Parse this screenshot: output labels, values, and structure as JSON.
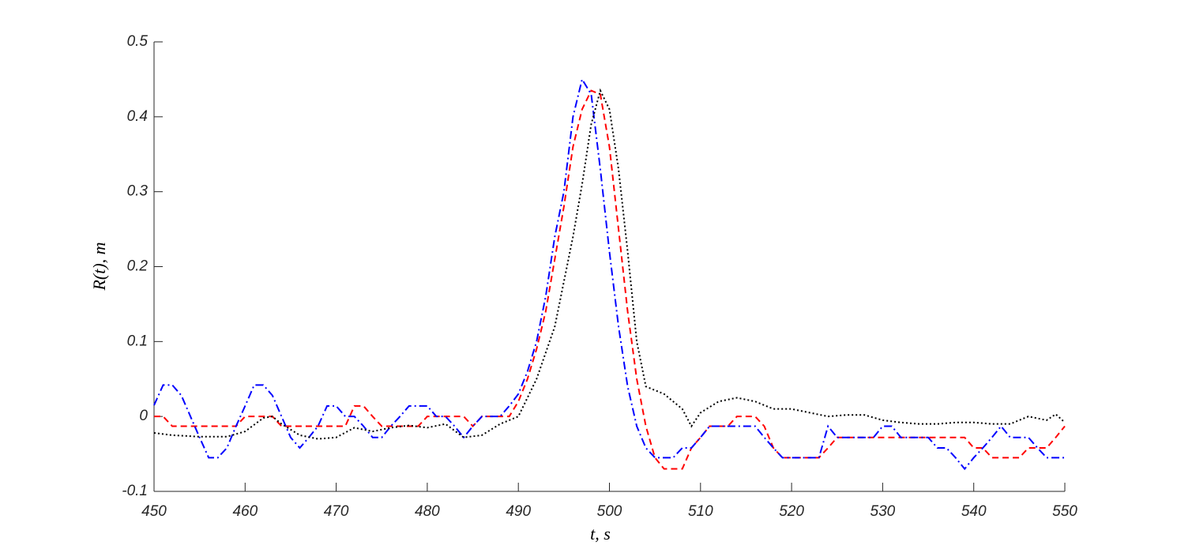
{
  "chart_data": {
    "type": "line",
    "x_label": "t, s",
    "y_label": "R(t), m",
    "xlim": [
      450,
      550
    ],
    "xticks": [
      450,
      460,
      470,
      480,
      490,
      500,
      510,
      520,
      530,
      540,
      550
    ],
    "ylim": [
      -0.1,
      0.5
    ],
    "yticks": [
      -0.1,
      0,
      0.1,
      0.2,
      0.3,
      0.4,
      0.5
    ],
    "grid": false,
    "x": [
      450,
      451,
      452,
      453,
      454,
      455,
      456,
      457,
      458,
      459,
      460,
      461,
      462,
      463,
      464,
      465,
      466,
      467,
      468,
      469,
      470,
      471,
      472,
      473,
      474,
      475,
      476,
      477,
      478,
      479,
      480,
      481,
      482,
      483,
      484,
      485,
      486,
      487,
      488,
      489,
      490,
      491,
      492,
      493,
      494,
      495,
      496,
      497,
      498,
      499,
      500,
      501,
      502,
      503,
      504,
      505,
      506,
      507,
      508,
      509,
      510,
      511,
      512,
      513,
      514,
      515,
      516,
      517,
      518,
      519,
      520,
      521,
      522,
      523,
      524,
      525,
      526,
      527,
      528,
      529,
      530,
      531,
      532,
      533,
      534,
      535,
      536,
      537,
      538,
      539,
      540,
      541,
      542,
      543,
      544,
      545,
      546,
      547,
      548,
      549,
      550
    ],
    "series": [
      {
        "color": "#ff0000",
        "dash": "8,5",
        "values": [
          0,
          0,
          -0.013,
          -0.013,
          -0.013,
          -0.013,
          -0.013,
          -0.013,
          -0.013,
          -0.013,
          0,
          0,
          0,
          0,
          -0.013,
          -0.013,
          -0.013,
          -0.013,
          -0.013,
          -0.013,
          -0.013,
          -0.013,
          0.014,
          0.014,
          0,
          -0.013,
          -0.013,
          -0.013,
          -0.013,
          -0.013,
          0,
          0,
          0,
          0,
          0,
          -0.013,
          0,
          0,
          0,
          0,
          0.02,
          0.05,
          0.09,
          0.14,
          0.21,
          0.28,
          0.36,
          0.41,
          0.435,
          0.43,
          0.36,
          0.25,
          0.14,
          0.05,
          -0.013,
          -0.055,
          -0.07,
          -0.07,
          -0.07,
          -0.042,
          -0.028,
          -0.013,
          -0.013,
          -0.013,
          0,
          0,
          0,
          -0.013,
          -0.042,
          -0.055,
          -0.055,
          -0.055,
          -0.055,
          -0.055,
          -0.042,
          -0.028,
          -0.028,
          -0.028,
          -0.028,
          -0.028,
          -0.028,
          -0.028,
          -0.028,
          -0.028,
          -0.028,
          -0.028,
          -0.028,
          -0.028,
          -0.028,
          -0.028,
          -0.042,
          -0.042,
          -0.055,
          -0.055,
          -0.055,
          -0.055,
          -0.042,
          -0.042,
          -0.042,
          -0.028,
          -0.013
        ]
      },
      {
        "color": "#0000ff",
        "dash": "10,4,2,4",
        "values": [
          0.015,
          0.042,
          0.042,
          0.028,
          0,
          -0.028,
          -0.055,
          -0.055,
          -0.042,
          -0.013,
          0.014,
          0.042,
          0.042,
          0.028,
          0,
          -0.028,
          -0.042,
          -0.028,
          -0.013,
          0.014,
          0.014,
          0,
          0,
          -0.013,
          -0.028,
          -0.028,
          -0.013,
          0,
          0.014,
          0.014,
          0.014,
          0,
          0,
          -0.013,
          -0.028,
          -0.013,
          0,
          0,
          0,
          0.014,
          0.03,
          0.06,
          0.1,
          0.16,
          0.24,
          0.3,
          0.4,
          0.45,
          0.43,
          0.33,
          0.22,
          0.12,
          0.04,
          -0.013,
          -0.042,
          -0.055,
          -0.055,
          -0.055,
          -0.042,
          -0.042,
          -0.028,
          -0.013,
          -0.013,
          -0.013,
          -0.013,
          -0.013,
          -0.013,
          -0.028,
          -0.042,
          -0.055,
          -0.055,
          -0.055,
          -0.055,
          -0.055,
          -0.013,
          -0.028,
          -0.028,
          -0.028,
          -0.028,
          -0.028,
          -0.013,
          -0.013,
          -0.028,
          -0.028,
          -0.028,
          -0.028,
          -0.042,
          -0.042,
          -0.055,
          -0.07,
          -0.055,
          -0.042,
          -0.028,
          -0.013,
          -0.028,
          -0.028,
          -0.028,
          -0.042,
          -0.055,
          -0.055,
          -0.055
        ]
      },
      {
        "color": "#000000",
        "dash": "2,3",
        "x": [
          450,
          452,
          455,
          458,
          460,
          462,
          463,
          464,
          466,
          468,
          470,
          472,
          474,
          476,
          478,
          480,
          482,
          484,
          486,
          488,
          490,
          492,
          494,
          496,
          497,
          498,
          499,
          500,
          501,
          502,
          503,
          504,
          506,
          508,
          509,
          510,
          512,
          514,
          516,
          518,
          520,
          522,
          524,
          526,
          528,
          530,
          532,
          534,
          536,
          538,
          540,
          542,
          544,
          546,
          548,
          549,
          550
        ],
        "values": [
          -0.022,
          -0.025,
          -0.027,
          -0.027,
          -0.02,
          -0.002,
          0,
          -0.01,
          -0.025,
          -0.03,
          -0.028,
          -0.015,
          -0.02,
          -0.015,
          -0.012,
          -0.015,
          -0.01,
          -0.028,
          -0.025,
          -0.01,
          0,
          0.05,
          0.12,
          0.24,
          0.31,
          0.39,
          0.435,
          0.41,
          0.33,
          0.22,
          0.1,
          0.04,
          0.03,
          0.01,
          -0.013,
          0.005,
          0.02,
          0.025,
          0.02,
          0.01,
          0.01,
          0.005,
          0,
          0.002,
          0.002,
          -0.005,
          -0.008,
          -0.01,
          -0.01,
          -0.008,
          -0.008,
          -0.01,
          -0.01,
          0,
          -0.005,
          0.003,
          -0.008
        ]
      }
    ]
  }
}
